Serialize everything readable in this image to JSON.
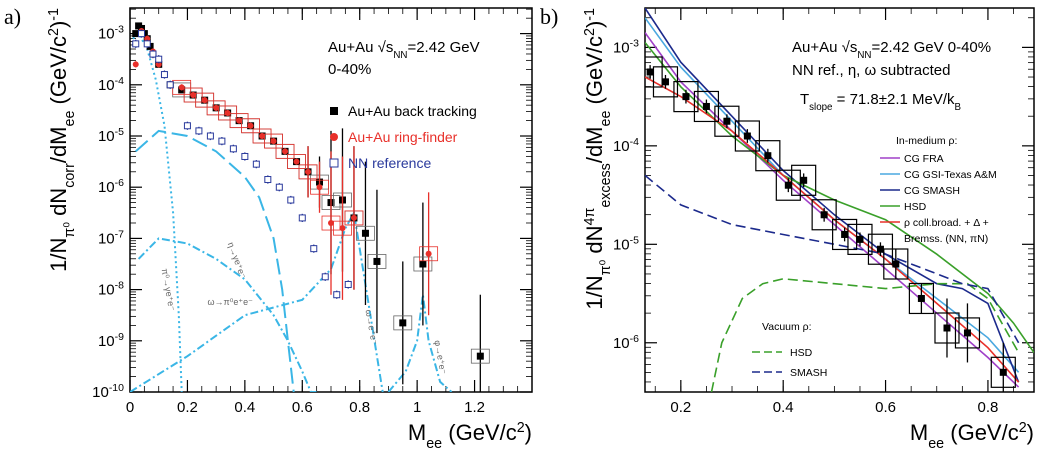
{
  "panels": {
    "a": {
      "label": "a)",
      "info_line1": "Au+Au",
      "info_sqrt": "s",
      "info_sub": "NN",
      "info_energy": "=2.42 GeV",
      "info_line2": "0-40%",
      "legend": [
        {
          "label": "Au+Au back tracking",
          "color": "#000000",
          "marker": "filled-square"
        },
        {
          "label": "Au+Au ring-finder",
          "color": "#e8302a",
          "marker": "filled-circle"
        },
        {
          "label": "NN reference",
          "color": "#2a3a9c",
          "marker": "open-square"
        }
      ],
      "annotations": [
        "π⁰→γe⁺e⁻",
        "η→γe⁺e⁻",
        "ω→π⁰e⁺e⁻",
        "ω→e⁺e⁻",
        "φ→e⁺e⁻"
      ]
    },
    "b": {
      "label": "b)",
      "info_line1": "Au+Au",
      "info_sqrt": "s",
      "info_sub": "NN",
      "info_energy": "=2.42 GeV   0-40%",
      "info_line2": "NN ref., η, ω subtracted",
      "tslope": "T",
      "tslope_sub": "slope",
      "tslope_val": " = 71.8±2.1 MeV/k",
      "tslope_kb": "B",
      "legend_medium_title": "In-medium ρ:",
      "legend_medium": [
        {
          "label": "CG FRA",
          "color": "#a040c8"
        },
        {
          "label": "CG GSI-Texas A&M",
          "color": "#4aa8e0"
        },
        {
          "label": "CG SMASH",
          "color": "#1c2a8c"
        },
        {
          "label": "HSD",
          "color": "#3aa02a"
        },
        {
          "label": "ρ coll.broad. + Δ +",
          "color": "#e8302a"
        }
      ],
      "legend_medium_extra": "Bremss. (NN, πN)",
      "legend_vacuum_title": "Vacuum ρ:",
      "legend_vacuum": [
        {
          "label": "HSD",
          "color": "#3aa02a"
        },
        {
          "label": "SMASH",
          "color": "#1c2a8c"
        }
      ]
    }
  },
  "chart_data": [
    {
      "type": "scatter",
      "title": "",
      "xlabel": "M",
      "xlabel_sub": "ee",
      "xlabel_unit": " (GeV/c",
      "ylabel": "1/N",
      "ylabel_sub": "π⁰",
      "ylabel_rest": " dN",
      "ylabel_sub2": "corr",
      "ylabel_rest2": "/dM",
      "ylabel_sub3": "ee",
      "ylabel_unit": " (GeV/c",
      "ylabel_exp": "-1",
      "xlim": [
        0,
        1.4
      ],
      "ylim_log10": [
        -10,
        -2.5
      ],
      "x_ticks": [
        0,
        0.2,
        0.4,
        0.6,
        0.8,
        1,
        1.2
      ],
      "x_tick_labels": [
        "0",
        "0.2",
        "0.4",
        "0.6",
        "0.8",
        "1",
        "1.2"
      ],
      "y_ticks_log10": [
        -10,
        -9,
        -8,
        -7,
        -6,
        -5,
        -4,
        -3
      ],
      "y_tick_base": "10",
      "series": [
        {
          "name": "Au+Au back tracking",
          "color": "#000000",
          "x": [
            0.02,
            0.03,
            0.04,
            0.05,
            0.06,
            0.07,
            0.08,
            0.1,
            0.14,
            0.18,
            0.22,
            0.26,
            0.3,
            0.34,
            0.38,
            0.42,
            0.46,
            0.5,
            0.54,
            0.58,
            0.62,
            0.66,
            0.7,
            0.74,
            0.78,
            0.82,
            0.86,
            0.95,
            1.02,
            1.22
          ],
          "log10y": [
            -3.0,
            -2.85,
            -2.9,
            -3.0,
            -3.1,
            -3.25,
            -3.4,
            -3.6,
            -4.0,
            -4.1,
            -4.2,
            -4.3,
            -4.45,
            -4.55,
            -4.7,
            -4.8,
            -5.0,
            -5.1,
            -5.3,
            -5.5,
            -5.7,
            -5.9,
            -6.3,
            -6.25,
            -6.6,
            -6.9,
            -7.45,
            -8.65,
            -7.5,
            -9.3
          ]
        },
        {
          "name": "Au+Au ring-finder",
          "color": "#e8302a",
          "x": [
            0.02,
            0.04,
            0.06,
            0.08,
            0.1,
            0.14,
            0.18,
            0.22,
            0.26,
            0.3,
            0.34,
            0.38,
            0.42,
            0.46,
            0.5,
            0.54,
            0.58,
            0.62,
            0.66,
            0.7,
            0.74,
            0.78,
            1.04
          ],
          "log10y": [
            -3.6,
            -2.95,
            -3.1,
            -3.35,
            -3.6,
            -4.0,
            -4.05,
            -4.2,
            -4.3,
            -4.45,
            -4.55,
            -4.7,
            -4.8,
            -5.0,
            -5.1,
            -5.3,
            -5.5,
            -5.7,
            -6.0,
            -6.7,
            -6.8,
            -6.6,
            -7.3
          ]
        },
        {
          "name": "NN reference",
          "color": "#2a3a9c",
          "x": [
            0.02,
            0.04,
            0.06,
            0.08,
            0.1,
            0.12,
            0.14,
            0.2,
            0.24,
            0.28,
            0.32,
            0.36,
            0.4,
            0.44,
            0.48,
            0.52,
            0.56,
            0.6,
            0.64,
            0.68,
            0.72,
            0.76
          ],
          "log10y": [
            -3.2,
            -3.0,
            -3.2,
            -3.4,
            -3.5,
            -3.8,
            -4.0,
            -4.8,
            -4.9,
            -5.0,
            -5.1,
            -5.25,
            -5.4,
            -5.55,
            -5.85,
            -6.0,
            -6.25,
            -6.6,
            -7.2,
            -7.75,
            -8.1,
            -7.9
          ]
        }
      ],
      "model_curves": [
        {
          "name": "pi0 Dalitz",
          "color": "#3ab6e6",
          "style": "dotted",
          "x": [
            0.01,
            0.03,
            0.06,
            0.09,
            0.12,
            0.15,
            0.17,
            0.18
          ],
          "log10y": [
            -3.1,
            -3.0,
            -3.3,
            -3.9,
            -4.8,
            -6.5,
            -8.5,
            -10
          ]
        },
        {
          "name": "eta Dalitz",
          "color": "#3ab6e6",
          "style": "dashed-long",
          "x": [
            0.02,
            0.1,
            0.2,
            0.3,
            0.4,
            0.45,
            0.5,
            0.53,
            0.55,
            0.57
          ],
          "log10y": [
            -5.3,
            -4.9,
            -5.0,
            -5.3,
            -5.8,
            -6.2,
            -7.0,
            -8.0,
            -9.0,
            -10
          ]
        },
        {
          "name": "omega Dalitz",
          "color": "#3ab6e6",
          "style": "dashdot",
          "x": [
            0.03,
            0.1,
            0.2,
            0.3,
            0.4,
            0.5,
            0.55,
            0.6,
            0.63,
            0.65
          ],
          "log10y": [
            -7.4,
            -7.0,
            -7.1,
            -7.4,
            -7.8,
            -8.5,
            -9.0,
            -9.6,
            -10,
            -10
          ]
        },
        {
          "name": "omega ee",
          "color": "#3ab6e6",
          "style": "dashdot",
          "x": [
            0.0,
            0.2,
            0.4,
            0.6,
            0.7,
            0.75,
            0.78,
            0.8,
            0.84,
            0.88
          ],
          "log10y": [
            -10,
            -9.3,
            -8.5,
            -8.2,
            -7.6,
            -6.8,
            -6.5,
            -7.2,
            -8.6,
            -10
          ]
        },
        {
          "name": "phi ee",
          "color": "#3ab6e6",
          "style": "dashdot",
          "x": [
            0.9,
            0.96,
            1.0,
            1.02,
            1.04,
            1.08,
            1.12
          ],
          "log10y": [
            -10,
            -9.6,
            -9.0,
            -8.1,
            -9.0,
            -9.8,
            -10
          ]
        }
      ]
    },
    {
      "type": "scatter",
      "title": "",
      "xlabel": "M",
      "xlabel_sub": "ee",
      "xlabel_unit": " (GeV/c",
      "ylabel": "1/N",
      "ylabel_sub": "π⁰",
      "ylabel_rest": " dN",
      "ylabel_sup2": "4π",
      "ylabel_sub2": "excess",
      "ylabel_rest2": "/dM",
      "ylabel_sub3": "ee",
      "ylabel_unit": " (GeV/c",
      "ylabel_exp": "-1",
      "xlim": [
        0.13,
        0.89
      ],
      "ylim_log10": [
        -6.5,
        -2.6
      ],
      "x_ticks": [
        0.2,
        0.4,
        0.6,
        0.8
      ],
      "x_tick_labels": [
        "0.2",
        "0.4",
        "0.6",
        "0.8"
      ],
      "y_ticks_log10": [
        -6,
        -5,
        -4,
        -3
      ],
      "y_tick_base": "10",
      "series": [
        {
          "name": "excess",
          "color": "#000000",
          "x": [
            0.14,
            0.17,
            0.21,
            0.25,
            0.29,
            0.33,
            0.37,
            0.41,
            0.44,
            0.48,
            0.52,
            0.55,
            0.59,
            0.62,
            0.67,
            0.72,
            0.76,
            0.83
          ],
          "log10y": [
            -3.25,
            -3.35,
            -3.5,
            -3.6,
            -3.75,
            -3.9,
            -4.1,
            -4.4,
            -4.35,
            -4.7,
            -4.9,
            -4.95,
            -5.05,
            -5.2,
            -5.55,
            -5.85,
            -5.9,
            -6.3
          ]
        }
      ],
      "model_curves": [
        {
          "name": "CG FRA",
          "color": "#a040c8",
          "style": "solid",
          "x": [
            0.13,
            0.2,
            0.3,
            0.4,
            0.5,
            0.6,
            0.7,
            0.8,
            0.86
          ],
          "log10y": [
            -2.85,
            -3.35,
            -3.85,
            -4.35,
            -4.8,
            -5.25,
            -5.7,
            -6.15,
            -6.45
          ]
        },
        {
          "name": "CG GSI-Texas A&M",
          "color": "#4aa8e0",
          "style": "solid",
          "x": [
            0.13,
            0.2,
            0.3,
            0.4,
            0.5,
            0.6,
            0.7,
            0.8,
            0.86
          ],
          "log10y": [
            -2.7,
            -3.2,
            -3.75,
            -4.3,
            -4.75,
            -5.15,
            -5.55,
            -5.95,
            -6.3
          ]
        },
        {
          "name": "CG SMASH",
          "color": "#1c2a8c",
          "style": "solid",
          "x": [
            0.13,
            0.2,
            0.3,
            0.4,
            0.5,
            0.6,
            0.7,
            0.75,
            0.8,
            0.86
          ],
          "log10y": [
            -2.6,
            -3.15,
            -3.7,
            -4.25,
            -4.7,
            -5.1,
            -5.4,
            -5.45,
            -5.6,
            -6.4
          ]
        },
        {
          "name": "HSD",
          "color": "#3aa02a",
          "style": "solid",
          "x": [
            0.13,
            0.2,
            0.3,
            0.4,
            0.5,
            0.6,
            0.7,
            0.8,
            0.85,
            0.89
          ],
          "log10y": [
            -2.95,
            -3.4,
            -3.9,
            -4.3,
            -4.55,
            -4.75,
            -5.1,
            -5.5,
            -5.8,
            -6.1
          ]
        },
        {
          "name": "rho coll.broad.",
          "color": "#e8302a",
          "style": "solid",
          "x": [
            0.13,
            0.2,
            0.3,
            0.4,
            0.5,
            0.6,
            0.7,
            0.8,
            0.86
          ],
          "log10y": [
            -3.3,
            -3.5,
            -3.85,
            -4.3,
            -4.75,
            -5.15,
            -5.6,
            -6.05,
            -6.4
          ]
        },
        {
          "name": "Vacuum HSD",
          "color": "#3aa02a",
          "style": "dashed",
          "x": [
            0.26,
            0.28,
            0.32,
            0.36,
            0.4,
            0.5,
            0.6,
            0.7,
            0.76,
            0.8,
            0.86
          ],
          "log10y": [
            -6.5,
            -6.0,
            -5.55,
            -5.4,
            -5.35,
            -5.4,
            -5.45,
            -5.4,
            -5.4,
            -5.55,
            -6.1
          ]
        },
        {
          "name": "Vacuum SMASH",
          "color": "#1c2a8c",
          "style": "dashed",
          "x": [
            0.13,
            0.2,
            0.3,
            0.4,
            0.5,
            0.6,
            0.7,
            0.75,
            0.8,
            0.86
          ],
          "log10y": [
            -4.3,
            -4.6,
            -4.8,
            -4.9,
            -5.0,
            -5.1,
            -5.3,
            -5.4,
            -5.45,
            -6.0
          ]
        }
      ]
    }
  ]
}
